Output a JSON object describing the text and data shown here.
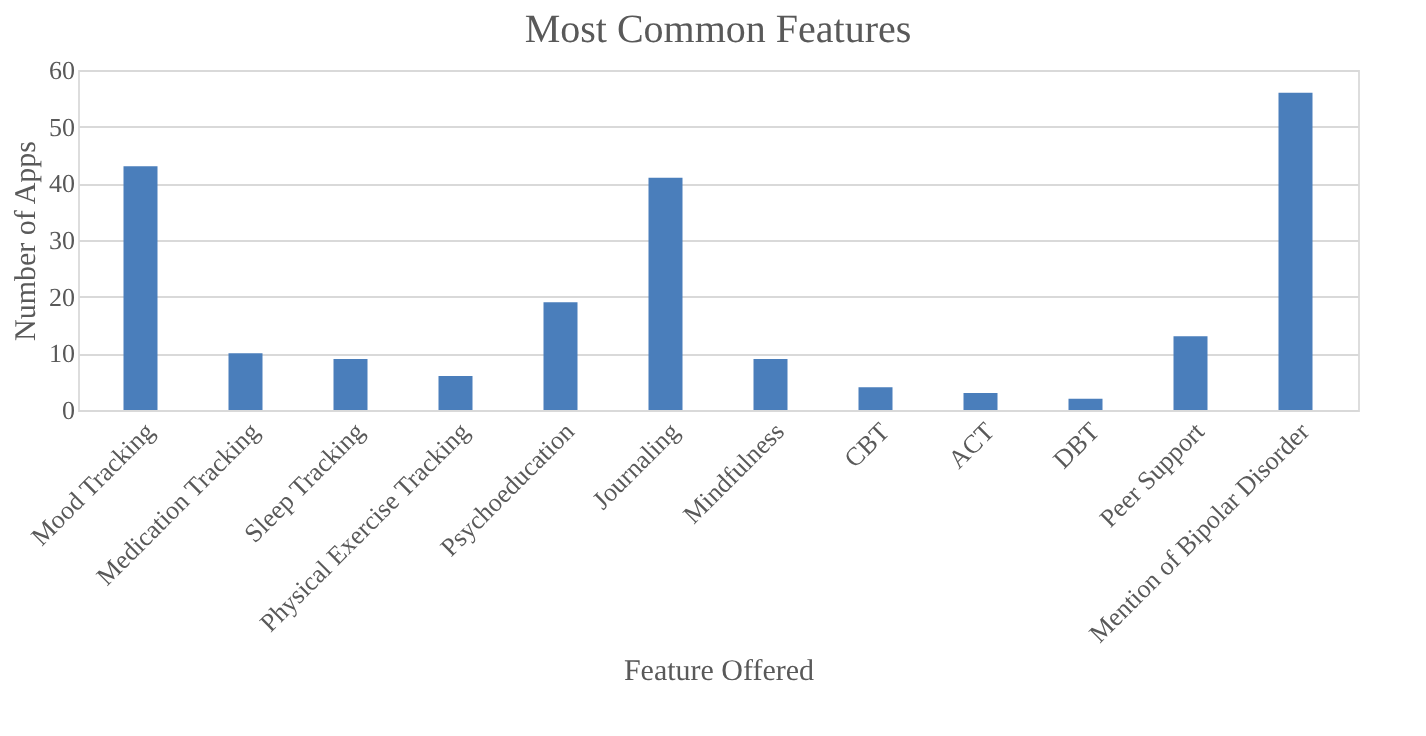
{
  "chart_data": {
    "type": "bar",
    "title": "Most Common Features",
    "xlabel": "Feature Offered",
    "ylabel": "Number of Apps",
    "categories": [
      "Mood Tracking",
      "Medication Tracking",
      "Sleep Tracking",
      "Physical Exercise Tracking",
      "Psychoeducation",
      "Journaling",
      "Mindfulness",
      "CBT",
      "ACT",
      "DBT",
      "Peer Support",
      "Mention of Bipolar Disorder"
    ],
    "values": [
      43,
      10,
      9,
      6,
      19,
      41,
      9,
      4,
      3,
      2,
      13,
      56
    ],
    "color": "#4a7ebb",
    "ylim": [
      0,
      60
    ],
    "yticks": [
      0,
      10,
      20,
      30,
      40,
      50,
      60
    ],
    "grid": "y"
  }
}
